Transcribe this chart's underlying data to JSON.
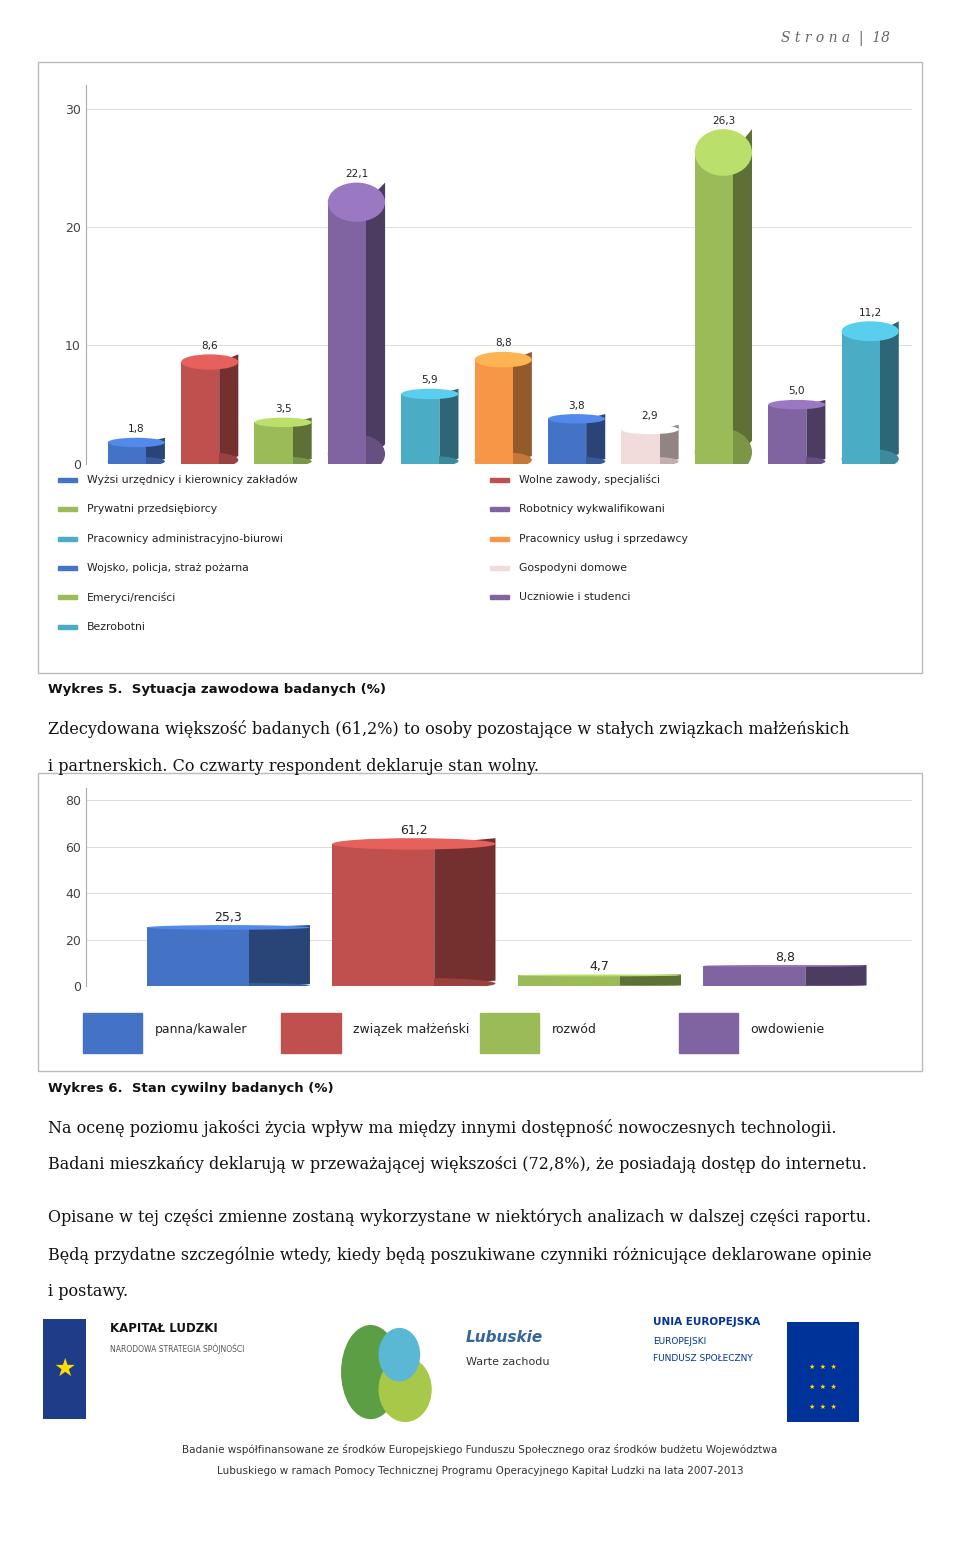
{
  "page_header": "S t r o n a  |  18",
  "chart1": {
    "values": [
      1.8,
      8.6,
      3.5,
      22.1,
      5.9,
      8.8,
      3.8,
      2.9,
      26.3,
      5.0,
      11.2
    ],
    "colors": [
      "#4472C4",
      "#C0504D",
      "#9BBB59",
      "#8064A2",
      "#4BACC6",
      "#F79646",
      "#4472C4",
      "#F2DCDB",
      "#9BBB59",
      "#8064A2",
      "#4BACC6"
    ],
    "yticks": [
      0,
      10,
      20,
      30
    ],
    "ylim": [
      0,
      32
    ]
  },
  "chart1_legend_col1": [
    {
      "label": "Wyżsi urzędnicy i kierownicy zakładów",
      "color": "#4472C4"
    },
    {
      "label": "Prywatni przedsiębiorcy",
      "color": "#9BBB59"
    },
    {
      "label": "Pracownicy administracyjno-biurowi",
      "color": "#4BACC6"
    },
    {
      "label": "Wojsko, policja, straż pożarna",
      "color": "#4472C4"
    },
    {
      "label": "Emeryci/renciści",
      "color": "#9BBB59"
    },
    {
      "label": "Bezrobotni",
      "color": "#4BACC6"
    }
  ],
  "chart1_legend_col2": [
    {
      "label": "Wolne zawody, specjaliści",
      "color": "#C0504D"
    },
    {
      "label": "Robotnicy wykwalifikowani",
      "color": "#8064A2"
    },
    {
      "label": "Pracownicy usług i sprzedawcy",
      "color": "#F79646"
    },
    {
      "label": "Gospodyni domowe",
      "color": "#F2DCDB"
    },
    {
      "label": "Uczniowie i studenci",
      "color": "#8064A2"
    }
  ],
  "wykres5_label": "Wykres 5.  Sytuacja zawodowa badanych (%)",
  "text1_line1": "Zdecydowana większość badanych (61,2%) to osoby pozostające w stałych związkach małżeńskich",
  "text1_line2": "i partnerskich. Co czwarty respondent deklaruje stan wolny.",
  "chart2": {
    "values": [
      25.3,
      61.2,
      4.7,
      8.8
    ],
    "colors": [
      "#4472C4",
      "#C0504D",
      "#9BBB59",
      "#8064A2"
    ],
    "yticks": [
      0,
      20,
      40,
      60,
      80
    ],
    "ylim": [
      0,
      85
    ]
  },
  "chart2_legend": [
    {
      "label": "panna/kawaler",
      "color": "#4472C4"
    },
    {
      "label": "związek małżeński",
      "color": "#C0504D"
    },
    {
      "label": "rozwód",
      "color": "#9BBB59"
    },
    {
      "label": "owdowienie",
      "color": "#8064A2"
    }
  ],
  "wykres6_label": "Wykres 6.  Stan cywilny badanych (%)",
  "text2_line1": "Na ocenę poziomu jakości życia wpływ ma między innymi dostępność nowoczesnych technologii.",
  "text2_line2": "Badani mieszkańcy deklarują w przeważającej większości (72,8%), że posiadają dostęp do internetu.",
  "text3_line1": "Opisane w tej części zmienne zostaną wykorzystane w niektórych analizach w dalszej części raportu.",
  "text3_line2": "Będą przydatne szczególnie wtedy, kiedy będą poszukiwane czynniki różnicujące deklarowane opinie",
  "text3_line3": "i postawy.",
  "footer_line1": "Badanie współfinansowane ze środków Europejskiego Funduszu Społecznego oraz środków budżetu Województwa",
  "footer_line2": "Lubuskiego w ramach Pomocy Technicznej Programu Operacyjnego Kapitał Ludzki na lata 2007-2013",
  "background_color": "#FFFFFF"
}
